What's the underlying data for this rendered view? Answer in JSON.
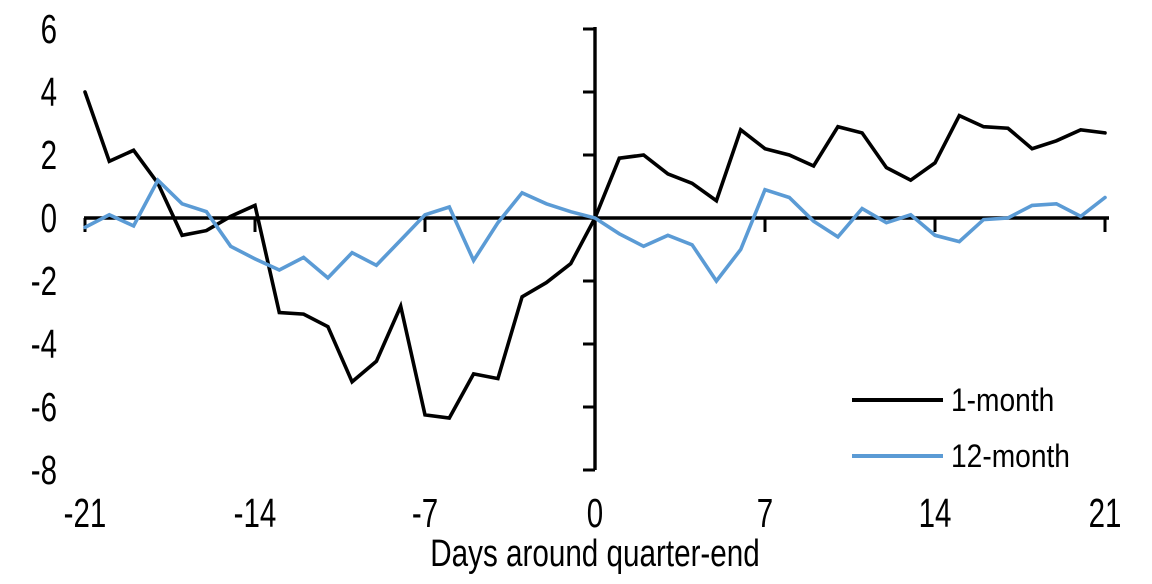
{
  "chart_data": {
    "type": "line",
    "title": "",
    "xlabel": "Days around quarter-end",
    "ylabel": "",
    "xlim": [
      -21,
      21
    ],
    "ylim": [
      -8,
      6
    ],
    "x_ticks": [
      -21,
      -14,
      -7,
      0,
      7,
      14,
      21
    ],
    "y_ticks": [
      6,
      4,
      2,
      0,
      -2,
      -4,
      -6,
      -8
    ],
    "grid": false,
    "legend_position": "inside-lower-right",
    "x": [
      -21,
      -20,
      -19,
      -18,
      -17,
      -16,
      -15,
      -14,
      -13,
      -12,
      -11,
      -10,
      -9,
      -8,
      -7,
      -6,
      -5,
      -4,
      -3,
      -2,
      -1,
      0,
      1,
      2,
      3,
      4,
      5,
      6,
      7,
      8,
      9,
      10,
      11,
      12,
      13,
      14,
      15,
      16,
      17,
      18,
      19,
      20,
      21
    ],
    "series": [
      {
        "name": "1-month",
        "color": "#000000",
        "values": [
          4.0,
          1.8,
          2.15,
          1.1,
          -0.55,
          -0.4,
          0.05,
          0.4,
          -3.0,
          -3.05,
          -3.45,
          -5.2,
          -4.55,
          -2.8,
          -6.25,
          -6.35,
          -4.95,
          -5.1,
          -2.5,
          -2.05,
          -1.45,
          0.0,
          1.9,
          2.0,
          1.4,
          1.1,
          0.55,
          2.8,
          2.2,
          2.0,
          1.65,
          2.9,
          2.7,
          1.6,
          1.2,
          1.75,
          3.25,
          2.9,
          2.85,
          2.2,
          2.45,
          2.8,
          2.7
        ]
      },
      {
        "name": "12-month",
        "color": "#5B9BD5",
        "values": [
          -0.3,
          0.1,
          -0.25,
          1.2,
          0.45,
          0.2,
          -0.9,
          -1.3,
          -1.65,
          -1.25,
          -1.9,
          -1.1,
          -1.5,
          -0.7,
          0.1,
          0.35,
          -1.35,
          -0.15,
          0.8,
          0.45,
          0.2,
          0.0,
          -0.5,
          -0.9,
          -0.55,
          -0.85,
          -2.0,
          -1.0,
          0.9,
          0.65,
          -0.1,
          -0.6,
          0.3,
          -0.15,
          0.1,
          -0.55,
          -0.75,
          -0.05,
          0.0,
          0.4,
          0.45,
          0.05,
          0.65
        ]
      }
    ]
  },
  "colors": {
    "axis": "#000000",
    "background": "#FFFFFF"
  }
}
